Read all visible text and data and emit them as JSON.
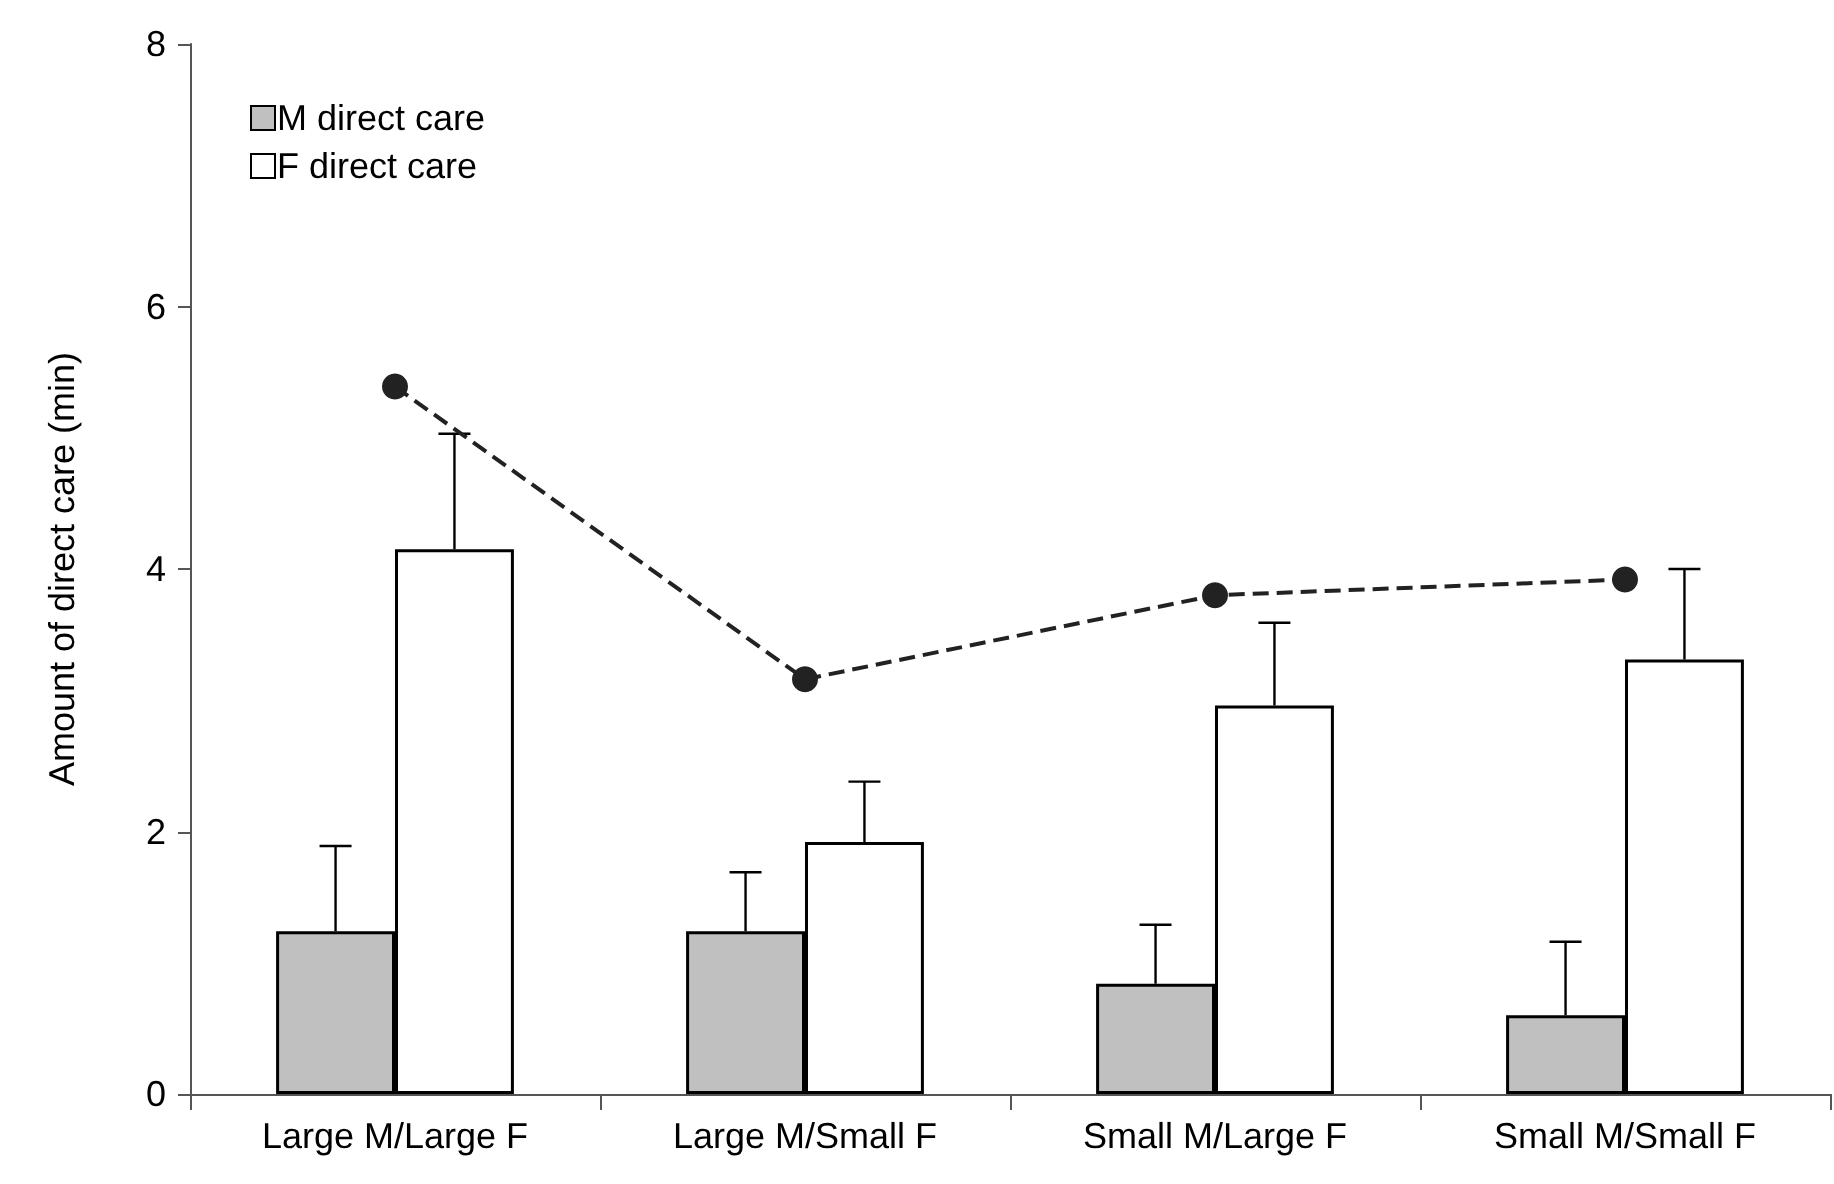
{
  "chart_data": {
    "type": "bar",
    "ylabel": "Amount of direct care (min)",
    "categories": [
      "Large M/Large F",
      "Large M/Small F",
      "Small M/Large F",
      "Small M/Small F"
    ],
    "series": [
      {
        "name": "M direct care",
        "color": "#c0c0c0",
        "values": [
          1.24,
          1.24,
          0.84,
          0.6
        ],
        "errors": [
          [
            1.24,
            1.89
          ],
          [
            1.24,
            1.69
          ],
          [
            0.84,
            1.29
          ],
          [
            0.6,
            1.16
          ]
        ]
      },
      {
        "name": "F direct care",
        "color": "#ffffff",
        "values": [
          4.15,
          1.92,
          2.96,
          3.31
        ],
        "errors": [
          [
            4.15,
            5.03
          ],
          [
            1.92,
            2.38
          ],
          [
            2.96,
            3.59
          ],
          [
            3.31,
            4.0
          ]
        ]
      },
      {
        "type": "line",
        "color": "#222222",
        "values": [
          5.39,
          3.16,
          3.8,
          3.92
        ],
        "marker": "circle",
        "line_style": "dashed"
      }
    ],
    "ylim": [
      0,
      8
    ],
    "yticks": [
      0,
      2,
      4,
      6,
      8
    ],
    "grid": false,
    "legend": "top left"
  }
}
